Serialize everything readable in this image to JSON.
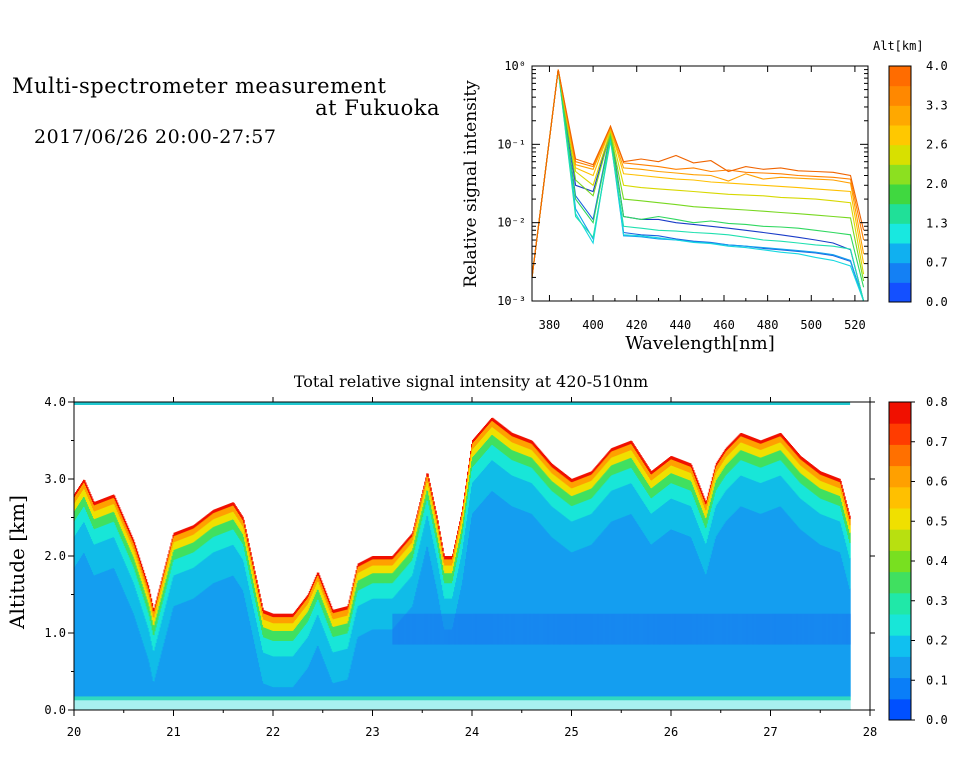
{
  "header": {
    "title_line1": "Multi-spectrometer measurement",
    "title_line2": "at Fukuoka",
    "date_range": "2017/06/26 20:00-27:57"
  },
  "colors": {
    "scale": [
      "#0050ff",
      "#0a7ef8",
      "#149ef0",
      "#10c0f0",
      "#18e6d8",
      "#20e8a8",
      "#40e060",
      "#78e020",
      "#b8e010",
      "#f0e000",
      "#ffc000",
      "#ffa000",
      "#ff7000",
      "#ff3c00",
      "#f01000"
    ]
  },
  "chart_data": [
    {
      "type": "line",
      "title": "",
      "xlabel": "Wavelength[nm]",
      "ylabel": "Relative signal intensity",
      "xlim": [
        372,
        526
      ],
      "ylim": [
        0.001,
        1
      ],
      "yscale": "log",
      "x_ticks": [
        380,
        400,
        420,
        440,
        460,
        480,
        500,
        520
      ],
      "x_tick_labels": [
        "380",
        "400",
        "420",
        "440",
        "460",
        "480",
        "500",
        "520"
      ],
      "y_ticks": [
        0.001,
        0.01,
        0.1,
        1
      ],
      "y_tick_labels": [
        "10⁻³",
        "10⁻²",
        "10⁻¹",
        "10⁰"
      ],
      "x": [
        372,
        384,
        392,
        400,
        408,
        414,
        422,
        430,
        438,
        446,
        454,
        462,
        470,
        478,
        486,
        494,
        502,
        510,
        518,
        524
      ],
      "colorbar": {
        "title": "Alt[km]",
        "tick_labels": [
          "0.0",
          "0.7",
          "1.3",
          "2.0",
          "2.6",
          "3.3",
          "4.0"
        ],
        "colors": [
          "#1450ff",
          "#1480f4",
          "#10b0f0",
          "#18e8e0",
          "#20e098",
          "#40d840",
          "#8ce020",
          "#d8e000",
          "#ffc800",
          "#ffa800",
          "#ff8800",
          "#ff6c00"
        ]
      },
      "series": [
        {
          "color": "#1a3cc8",
          "values": [
            0.002,
            0.9,
            0.03,
            0.025,
            0.15,
            0.012,
            0.011,
            0.011,
            0.01,
            0.0095,
            0.009,
            0.0085,
            0.008,
            0.0075,
            0.007,
            0.0065,
            0.006,
            0.0055,
            0.0045,
            0.001
          ]
        },
        {
          "color": "#1a62e0",
          "values": [
            0.002,
            0.9,
            0.022,
            0.011,
            0.14,
            0.0075,
            0.007,
            0.0068,
            0.0062,
            0.0058,
            0.0056,
            0.0052,
            0.005,
            0.0047,
            0.0045,
            0.0043,
            0.0041,
            0.0038,
            0.0032,
            0.001
          ]
        },
        {
          "color": "#14a0ee",
          "values": [
            0.002,
            0.9,
            0.015,
            0.0062,
            0.12,
            0.0068,
            0.0066,
            0.0062,
            0.006,
            0.0057,
            0.0055,
            0.0052,
            0.005,
            0.0048,
            0.0046,
            0.0044,
            0.0042,
            0.0039,
            0.0033,
            0.001
          ]
        },
        {
          "color": "#18d8e0",
          "values": [
            0.002,
            0.9,
            0.013,
            0.0055,
            0.13,
            0.007,
            0.0068,
            0.0064,
            0.006,
            0.0056,
            0.0054,
            0.005,
            0.0048,
            0.0045,
            0.0042,
            0.004,
            0.0036,
            0.0033,
            0.0028,
            0.001
          ]
        },
        {
          "color": "#20e0b0",
          "values": [
            0.002,
            0.9,
            0.012,
            0.0065,
            0.11,
            0.009,
            0.0085,
            0.008,
            0.0078,
            0.0075,
            0.0073,
            0.007,
            0.0065,
            0.006,
            0.0058,
            0.0055,
            0.0052,
            0.005,
            0.0046,
            0.001
          ]
        },
        {
          "color": "#30d860",
          "values": [
            0.002,
            0.9,
            0.02,
            0.01,
            0.13,
            0.012,
            0.011,
            0.012,
            0.011,
            0.01,
            0.0105,
            0.0098,
            0.0095,
            0.009,
            0.0088,
            0.0085,
            0.008,
            0.0075,
            0.007,
            0.0015
          ]
        },
        {
          "color": "#78d820",
          "values": [
            0.002,
            0.9,
            0.035,
            0.022,
            0.14,
            0.02,
            0.019,
            0.018,
            0.017,
            0.016,
            0.0155,
            0.015,
            0.0145,
            0.014,
            0.0135,
            0.013,
            0.0125,
            0.012,
            0.0115,
            0.0018
          ]
        },
        {
          "color": "#d8d800",
          "values": [
            0.002,
            0.9,
            0.045,
            0.03,
            0.15,
            0.03,
            0.028,
            0.027,
            0.026,
            0.025,
            0.024,
            0.023,
            0.0225,
            0.022,
            0.021,
            0.0205,
            0.02,
            0.019,
            0.018,
            0.0022
          ]
        },
        {
          "color": "#ffc000",
          "values": [
            0.002,
            0.9,
            0.05,
            0.04,
            0.16,
            0.042,
            0.04,
            0.038,
            0.036,
            0.035,
            0.033,
            0.032,
            0.031,
            0.03,
            0.029,
            0.028,
            0.027,
            0.026,
            0.025,
            0.003
          ]
        },
        {
          "color": "#ffa000",
          "values": [
            0.002,
            0.9,
            0.055,
            0.048,
            0.16,
            0.05,
            0.048,
            0.045,
            0.043,
            0.041,
            0.04,
            0.034,
            0.042,
            0.036,
            0.038,
            0.037,
            0.036,
            0.035,
            0.032,
            0.004
          ]
        },
        {
          "color": "#ff8000",
          "values": [
            0.002,
            0.9,
            0.06,
            0.052,
            0.17,
            0.058,
            0.055,
            0.052,
            0.048,
            0.05,
            0.045,
            0.047,
            0.044,
            0.043,
            0.042,
            0.04,
            0.039,
            0.038,
            0.036,
            0.006
          ]
        },
        {
          "color": "#f06400",
          "values": [
            0.002,
            0.9,
            0.065,
            0.055,
            0.17,
            0.06,
            0.065,
            0.06,
            0.072,
            0.058,
            0.062,
            0.045,
            0.052,
            0.048,
            0.05,
            0.046,
            0.045,
            0.044,
            0.04,
            0.008
          ]
        }
      ]
    },
    {
      "type": "heatmap",
      "title": "Total relative signal intensity at 420-510nm",
      "xlabel": "",
      "ylabel": "Altitude [km]",
      "xlim": [
        20,
        28
      ],
      "ylim": [
        0,
        4
      ],
      "x_tick_labels": [
        "20",
        "21",
        "22",
        "23",
        "24",
        "25",
        "26",
        "27",
        "28"
      ],
      "y_tick_labels": [
        "0.0",
        "1.0",
        "2.0",
        "3.0",
        "4.0"
      ],
      "data_x_range": [
        20,
        27.8
      ],
      "cloud_base_km": {
        "x": [
          20.0,
          20.1,
          20.2,
          20.4,
          20.6,
          20.75,
          20.8,
          20.9,
          21.0,
          21.2,
          21.4,
          21.6,
          21.7,
          21.8,
          21.9,
          22.0,
          22.2,
          22.35,
          22.45,
          22.6,
          22.75,
          22.85,
          23.0,
          23.2,
          23.4,
          23.55,
          23.65,
          23.72,
          23.8,
          23.9,
          24.0,
          24.2,
          24.4,
          24.6,
          24.8,
          25.0,
          25.2,
          25.4,
          25.6,
          25.8,
          26.0,
          26.2,
          26.35,
          26.45,
          26.55,
          26.7,
          26.9,
          27.1,
          27.3,
          27.5,
          27.7,
          27.8
        ],
        "values": [
          2.8,
          3.0,
          2.7,
          2.8,
          2.2,
          1.6,
          1.3,
          1.8,
          2.3,
          2.4,
          2.6,
          2.7,
          2.5,
          1.9,
          1.3,
          1.25,
          1.25,
          1.5,
          1.8,
          1.3,
          1.35,
          1.9,
          2.0,
          2.0,
          2.3,
          3.1,
          2.5,
          2.0,
          2.0,
          2.6,
          3.5,
          3.8,
          3.6,
          3.5,
          3.2,
          3.0,
          3.1,
          3.4,
          3.5,
          3.1,
          3.3,
          3.2,
          2.7,
          3.2,
          3.4,
          3.6,
          3.5,
          3.6,
          3.3,
          3.1,
          3.0,
          2.5
        ]
      },
      "background_level": 0.15,
      "colorbar": {
        "tick_labels": [
          "0.0",
          "0.1",
          "0.2",
          "0.3",
          "0.4",
          "0.5",
          "0.6",
          "0.7",
          "0.8"
        ]
      }
    }
  ]
}
